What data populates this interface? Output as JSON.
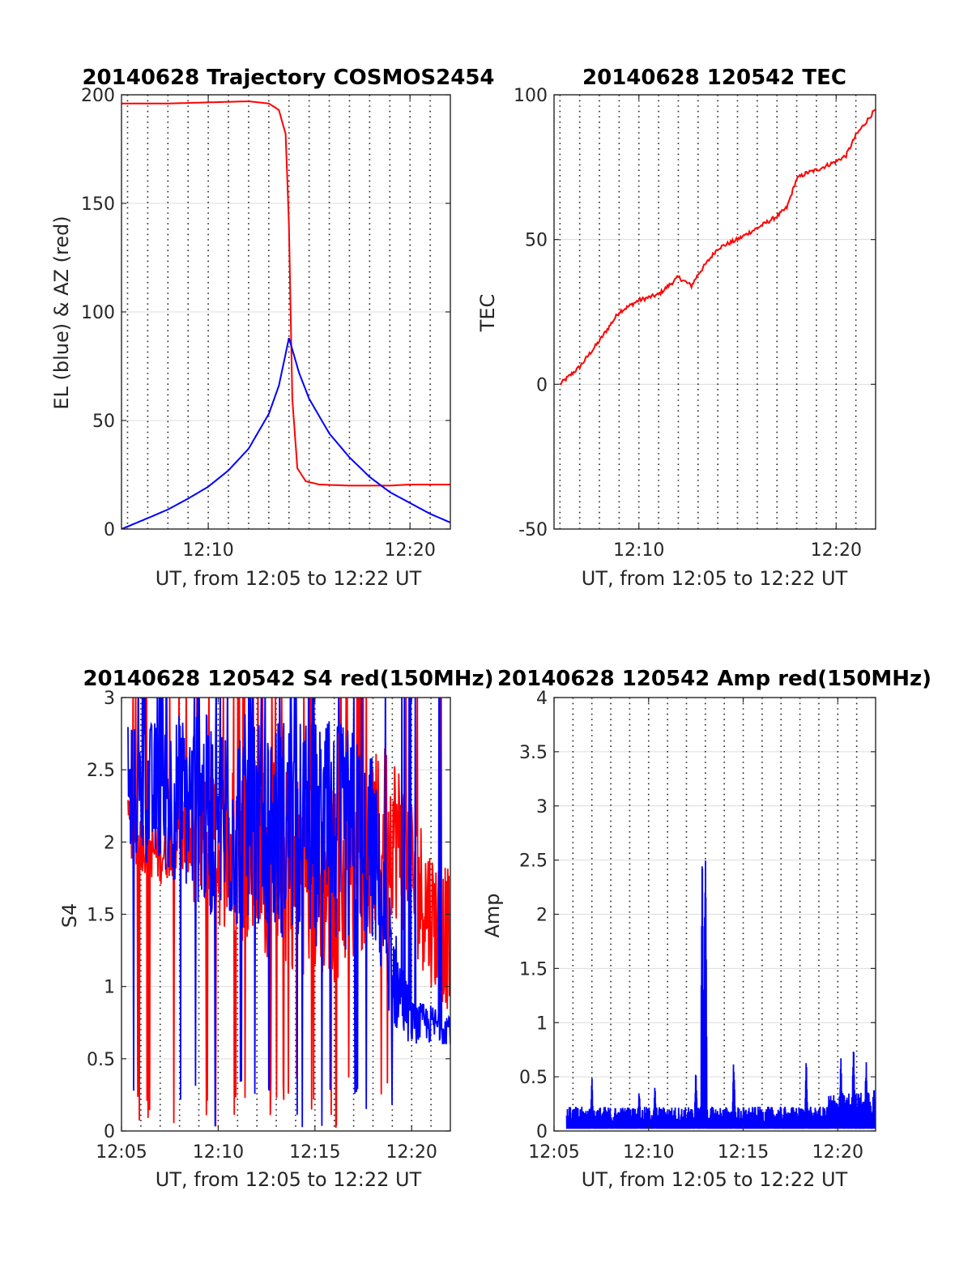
{
  "chart_data": [
    {
      "id": "trajectory",
      "type": "line",
      "title": "20140628 Trajectory COSMOS2454",
      "xlabel": "UT, from 12:05 to 12:22 UT",
      "ylabel": "EL (blue) & AZ (red)",
      "xlim": [
        "12:05:42",
        "12:22:00"
      ],
      "ylim": [
        0,
        200
      ],
      "yticks": [
        0,
        50,
        100,
        150,
        200
      ],
      "xticks": [
        "12:10",
        "12:20"
      ],
      "grid": true,
      "series": [
        {
          "color": "#ff0000",
          "x": [
            "12:05:42",
            "12:08:00",
            "12:12:00",
            "12:13:00",
            "12:13:30",
            "12:13:50",
            "12:14:00",
            "12:14:10",
            "12:14:25",
            "12:14:50",
            "12:15:30",
            "12:17:00",
            "12:19:00",
            "12:20:00",
            "12:22:00"
          ],
          "y": [
            196,
            196,
            197,
            196,
            193,
            182,
            140,
            60,
            28,
            22,
            20.5,
            20,
            20,
            20.5,
            20.5
          ]
        },
        {
          "color": "#0000ff",
          "x": [
            "12:05:42",
            "12:07:00",
            "12:08:00",
            "12:09:00",
            "12:10:00",
            "12:11:00",
            "12:12:00",
            "12:13:00",
            "12:13:30",
            "12:14:00",
            "12:14:30",
            "12:15:00",
            "12:16:00",
            "12:17:00",
            "12:18:00",
            "12:19:00",
            "12:20:00",
            "12:21:00",
            "12:22:00"
          ],
          "y": [
            0,
            5,
            9,
            14,
            19.5,
            27,
            37,
            53,
            66,
            88,
            72,
            60,
            44,
            33,
            24,
            17,
            12,
            7,
            3
          ]
        }
      ]
    },
    {
      "id": "tec",
      "type": "line",
      "title": "20140628 120542 TEC",
      "xlabel": "UT, from 12:05 to 12:22 UT",
      "ylabel": "TEC",
      "xlim": [
        "12:05:42",
        "12:22:00"
      ],
      "ylim": [
        -50,
        100
      ],
      "yticks": [
        -50,
        0,
        50,
        100
      ],
      "xticks": [
        "12:10",
        "12:20"
      ],
      "grid": true,
      "series": [
        {
          "color": "#ff0000",
          "x": [
            "12:06:00",
            "12:06:30",
            "12:07:00",
            "12:08:00",
            "12:09:00",
            "12:10:00",
            "12:11:00",
            "12:11:30",
            "12:12:00",
            "12:12:40",
            "12:13:00",
            "12:14:00",
            "12:15:00",
            "12:16:00",
            "12:17:00",
            "12:17:30",
            "12:18:00",
            "12:18:30",
            "12:19:00",
            "12:20:00",
            "12:20:30",
            "12:21:00",
            "12:22:00"
          ],
          "y": [
            0,
            3,
            6,
            15,
            25,
            29,
            31,
            34,
            37,
            34,
            38,
            47,
            50,
            54,
            58,
            61,
            71,
            73,
            74,
            77,
            79,
            86,
            95
          ]
        }
      ]
    },
    {
      "id": "s4",
      "type": "line",
      "title": "20140628 120542 S4 red(150MHz)",
      "xlabel": "UT, from 12:05 to 12:22 UT",
      "ylabel": "S4",
      "xlim": [
        "12:05:00",
        "12:22:00"
      ],
      "ylim": [
        0,
        3
      ],
      "yticks": [
        0,
        0.5,
        1,
        1.5,
        2,
        2.5,
        3
      ],
      "xticks": [
        "12:05",
        "12:10",
        "12:15",
        "12:20"
      ],
      "grid": true,
      "series": [
        {
          "color": "#ff0000",
          "envelope": [
            [
              "12:05:20",
              1.9,
              2.3
            ],
            [
              "12:06:00",
              1.8,
              2.2
            ],
            [
              "12:07:00",
              1.7,
              2.1
            ],
            [
              "12:08:00",
              1.8,
              2.3
            ],
            [
              "12:09:00",
              1.5,
              2.5
            ],
            [
              "12:12:00",
              1.2,
              2.6
            ],
            [
              "12:16:00",
              1.0,
              2.4
            ],
            [
              "12:19:00",
              1.5,
              2.7
            ],
            [
              "12:21:00",
              1.0,
              2.0
            ],
            [
              "12:22:00",
              0.8,
              1.8
            ]
          ]
        },
        {
          "color": "#0000ff",
          "envelope": [
            [
              "12:05:20",
              1.9,
              2.8
            ],
            [
              "12:08:00",
              1.7,
              2.9
            ],
            [
              "12:10:00",
              1.4,
              2.9
            ],
            [
              "12:14:00",
              1.3,
              2.9
            ],
            [
              "12:17:00",
              1.2,
              2.8
            ],
            [
              "12:18:00",
              1.3,
              2.6
            ],
            [
              "12:19:00",
              0.7,
              1.5
            ],
            [
              "12:20:00",
              0.6,
              0.9
            ],
            [
              "12:22:00",
              0.6,
              0.85
            ]
          ]
        }
      ]
    },
    {
      "id": "amp",
      "type": "line",
      "title": "20140628 120542 Amp red(150MHz)",
      "xlabel": "UT, from 12:05 to 12:22 UT",
      "ylabel": "Amp",
      "xlim": [
        "12:05:00",
        "12:22:00"
      ],
      "ylim": [
        0,
        4
      ],
      "yticks": [
        0,
        0.5,
        1,
        1.5,
        2,
        2.5,
        3,
        3.5,
        4
      ],
      "xticks": [
        "12:05",
        "12:10",
        "12:15",
        "12:20"
      ],
      "grid": true,
      "series": [
        {
          "color": "#0000ff",
          "base": 0.15,
          "spikes": [
            [
              "12:07:00",
              0.52
            ],
            [
              "12:09:30",
              0.42
            ],
            [
              "12:10:20",
              0.45
            ],
            [
              "12:12:30",
              0.62
            ],
            [
              "12:12:50",
              2.9
            ],
            [
              "12:13:00",
              3.0
            ],
            [
              "12:14:30",
              0.72
            ],
            [
              "12:18:20",
              0.7
            ],
            [
              "12:20:10",
              0.72
            ],
            [
              "12:20:50",
              0.97
            ],
            [
              "12:21:30",
              0.7
            ],
            [
              "12:21:55",
              0.45
            ]
          ]
        }
      ]
    }
  ]
}
